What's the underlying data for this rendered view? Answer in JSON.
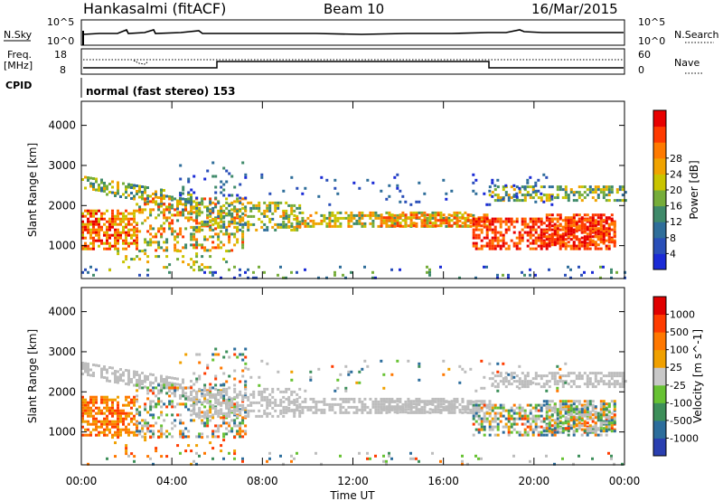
{
  "header": {
    "station": "Hankasalmi (fitACF)",
    "beam": "Beam 10",
    "date": "16/Mar/2015"
  },
  "strip_panels": {
    "nsky_label": "N.Sky",
    "nsky_ticks": [
      "10^5",
      "10^0"
    ],
    "nsearch_label": "N.Search",
    "nsearch_ticks": [
      "10^5",
      "10^0"
    ],
    "freq_label_1": "Freq.",
    "freq_label_2": "[MHz]",
    "freq_ticks": [
      "18",
      "8"
    ],
    "nave_label": "Nave",
    "nave_ticks": [
      "60",
      "0"
    ],
    "cpid_label": "CPID",
    "cpid_text": "normal (fast stereo) 153"
  },
  "chart_data": [
    {
      "type": "heatmap",
      "title": "",
      "xlabel": "Time UT",
      "ylabel": "Slant Range [km]",
      "x_ticks": [
        "00:00",
        "04:00",
        "08:00",
        "12:00",
        "16:00",
        "20:00",
        "00:00"
      ],
      "y_ticks": [
        1000,
        2000,
        3000,
        4000
      ],
      "ylim": [
        180,
        4600
      ],
      "colorbar": {
        "label": "Power [dB]",
        "ticks": [
          "4",
          "8",
          "12",
          "16",
          "20",
          "24",
          "28"
        ],
        "colors": [
          "#1b2bd6",
          "#2a4fb8",
          "#2f6e9a",
          "#3f8a6a",
          "#76ad3a",
          "#c9c400",
          "#f0a300",
          "#ff7a00",
          "#ff3a00",
          "#e80000"
        ]
      }
    },
    {
      "type": "heatmap",
      "title": "",
      "xlabel": "Time UT",
      "ylabel": "Slant Range [km]",
      "x_ticks": [
        "00:00",
        "04:00",
        "08:00",
        "12:00",
        "16:00",
        "20:00",
        "00:00"
      ],
      "y_ticks": [
        1000,
        2000,
        3000,
        4000
      ],
      "ylim": [
        180,
        4600
      ],
      "colorbar": {
        "label": "Velocity [m s^-1]",
        "ticks": [
          "1000",
          "500",
          "100",
          "25",
          "-25",
          "-100",
          "-500",
          "-1000"
        ],
        "colors": [
          "#2a3fb0",
          "#2c6d9c",
          "#3d8f5a",
          "#67c233",
          "#c8c8c8",
          "#f0a000",
          "#ff7800",
          "#ff3c00",
          "#e00000"
        ]
      }
    }
  ],
  "colors": {
    "ground_scatter": "#bdbdbd",
    "frame": "#000000"
  }
}
